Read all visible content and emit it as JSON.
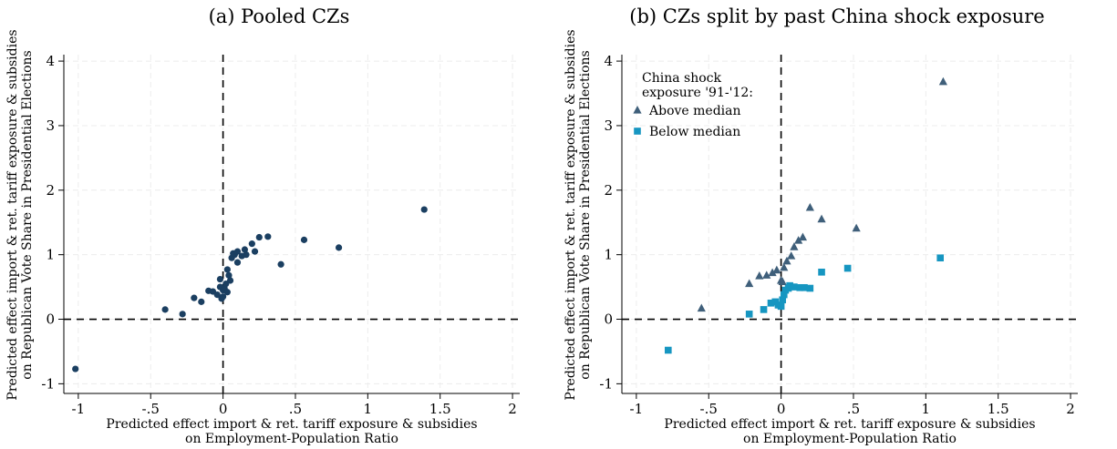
{
  "chart_data": [
    {
      "type": "scatter",
      "title": "(a) Pooled CZs",
      "xlabel": [
        "Predicted effect import & ret. tariff exposure & subsidies",
        "on Employment-Population Ratio"
      ],
      "ylabel": [
        "Predicted effect import & ret. tariff exposure & subsidies",
        "on Republican Vote Share in Presidential Elections"
      ],
      "xlim": [
        -1.1,
        2.05
      ],
      "ylim": [
        -1.15,
        4.1
      ],
      "xticks": [
        -1,
        -0.5,
        0,
        0.5,
        1,
        1.5,
        2
      ],
      "xtick_labels": [
        "-1",
        "-.5",
        "0",
        ".5",
        "1",
        "1.5",
        "2"
      ],
      "yticks": [
        -1,
        0,
        1,
        2,
        3,
        4
      ],
      "ytick_labels": [
        "-1",
        "0",
        "1",
        "2",
        "3",
        "4"
      ],
      "grid": true,
      "series": [
        {
          "marker": "circle",
          "color": "#1b3f61",
          "points": [
            [
              -1.02,
              -0.77
            ],
            [
              -0.4,
              0.15
            ],
            [
              -0.28,
              0.08
            ],
            [
              -0.2,
              0.33
            ],
            [
              -0.15,
              0.27
            ],
            [
              -0.1,
              0.44
            ],
            [
              -0.07,
              0.43
            ],
            [
              -0.04,
              0.38
            ],
            [
              -0.02,
              0.5
            ],
            [
              -0.01,
              0.32
            ],
            [
              0.0,
              0.35
            ],
            [
              -0.02,
              0.62
            ],
            [
              0.0,
              0.45
            ],
            [
              0.01,
              0.48
            ],
            [
              0.02,
              0.55
            ],
            [
              0.03,
              0.42
            ],
            [
              0.04,
              0.68
            ],
            [
              0.05,
              0.6
            ],
            [
              0.03,
              0.77
            ],
            [
              0.06,
              0.95
            ],
            [
              0.07,
              1.02
            ],
            [
              0.08,
              1.0
            ],
            [
              0.1,
              0.88
            ],
            [
              0.1,
              1.05
            ],
            [
              0.13,
              0.98
            ],
            [
              0.15,
              1.08
            ],
            [
              0.16,
              1.0
            ],
            [
              0.2,
              1.17
            ],
            [
              0.22,
              1.05
            ],
            [
              0.25,
              1.27
            ],
            [
              0.31,
              1.28
            ],
            [
              0.4,
              0.85
            ],
            [
              0.56,
              1.23
            ],
            [
              0.8,
              1.11
            ],
            [
              1.39,
              1.7
            ]
          ]
        }
      ]
    },
    {
      "type": "scatter",
      "title": "(b) CZs split by past China shock exposure",
      "xlabel": [
        "Predicted effect import & ret. tariff exposure & subsidies",
        "on Employment-Population Ratio"
      ],
      "ylabel": [
        "Predicted effect import & ret. tariff exposure & subsidies",
        "on Republican Vote Share in Presidential Elections"
      ],
      "xlim": [
        -1.1,
        2.05
      ],
      "ylim": [
        -1.15,
        4.1
      ],
      "xticks": [
        -1,
        -0.5,
        0,
        0.5,
        1,
        1.5,
        2
      ],
      "xtick_labels": [
        "-1",
        "-.5",
        "0",
        ".5",
        "1",
        "1.5",
        "2"
      ],
      "yticks": [
        -1,
        0,
        1,
        2,
        3,
        4
      ],
      "ytick_labels": [
        "-1",
        "0",
        "1",
        "2",
        "3",
        "4"
      ],
      "grid": true,
      "legend": {
        "title": [
          "China shock",
          "exposure '91-'12:"
        ],
        "placement": "top-left"
      },
      "series": [
        {
          "name": "Above median",
          "marker": "triangle",
          "color": "#3f5f7a",
          "points": [
            [
              -0.55,
              0.17
            ],
            [
              -0.22,
              0.55
            ],
            [
              -0.15,
              0.67
            ],
            [
              -0.1,
              0.68
            ],
            [
              -0.06,
              0.72
            ],
            [
              -0.03,
              0.76
            ],
            [
              0.0,
              0.6
            ],
            [
              0.01,
              0.58
            ],
            [
              0.02,
              0.8
            ],
            [
              0.04,
              0.9
            ],
            [
              0.07,
              0.98
            ],
            [
              0.09,
              1.12
            ],
            [
              0.12,
              1.22
            ],
            [
              0.15,
              1.27
            ],
            [
              0.2,
              1.73
            ],
            [
              0.28,
              1.55
            ],
            [
              0.52,
              1.41
            ],
            [
              1.12,
              3.68
            ]
          ]
        },
        {
          "name": "Below median",
          "marker": "square",
          "color": "#1696c1",
          "points": [
            [
              -0.78,
              -0.48
            ],
            [
              -0.22,
              0.08
            ],
            [
              -0.12,
              0.15
            ],
            [
              -0.07,
              0.25
            ],
            [
              -0.04,
              0.27
            ],
            [
              -0.02,
              0.22
            ],
            [
              0.0,
              0.2
            ],
            [
              0.01,
              0.3
            ],
            [
              0.02,
              0.38
            ],
            [
              0.03,
              0.45
            ],
            [
              0.05,
              0.48
            ],
            [
              0.06,
              0.52
            ],
            [
              0.09,
              0.5
            ],
            [
              0.13,
              0.49
            ],
            [
              0.16,
              0.49
            ],
            [
              0.2,
              0.48
            ],
            [
              0.28,
              0.73
            ],
            [
              0.46,
              0.79
            ],
            [
              1.1,
              0.95
            ]
          ]
        }
      ]
    }
  ]
}
